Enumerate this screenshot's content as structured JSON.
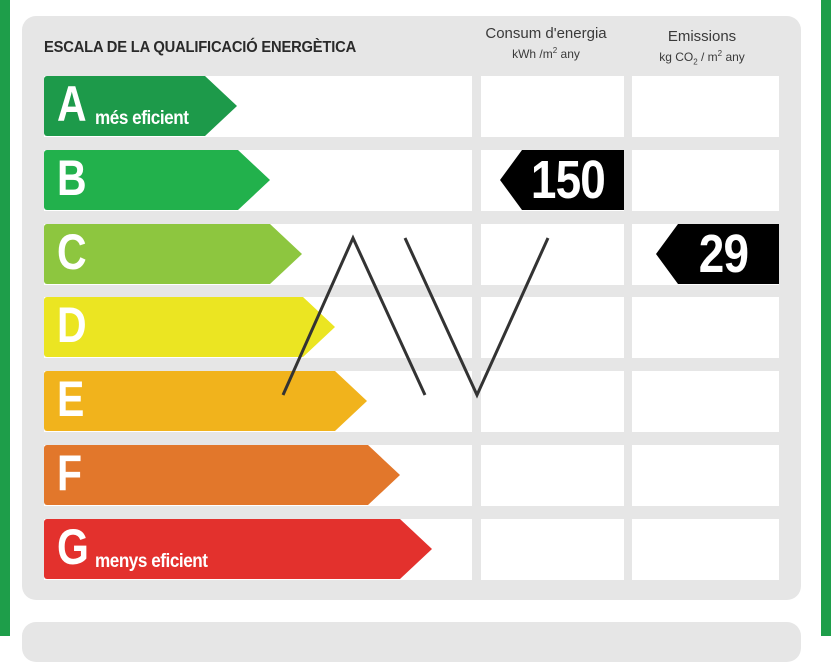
{
  "title": "ESCALA DE LA QUALIFICACIÓ ENERGÈTICA",
  "columns": {
    "consum": {
      "label": "Consum d'energia",
      "unit_pre": "kWh /m",
      "unit_sup": "2",
      "unit_post": " any"
    },
    "emissions": {
      "label": "Emissions",
      "unit_pre": "kg CO",
      "unit_sub": "2",
      "unit_mid": " / m",
      "unit_sup": "2",
      "unit_post": " any"
    }
  },
  "ratings": [
    {
      "letter": "A",
      "sublabel": "més eficient",
      "color": "#1d9a4a"
    },
    {
      "letter": "B",
      "sublabel": "",
      "color": "#22b14c"
    },
    {
      "letter": "C",
      "sublabel": "",
      "color": "#8dc63f"
    },
    {
      "letter": "D",
      "sublabel": "",
      "color": "#ebe522"
    },
    {
      "letter": "E",
      "sublabel": "",
      "color": "#f1b31c"
    },
    {
      "letter": "F",
      "sublabel": "",
      "color": "#e2772b"
    },
    {
      "letter": "G",
      "sublabel": "menys eficient",
      "color": "#e3312d"
    }
  ],
  "consumption": {
    "value": "150",
    "rating": "B"
  },
  "emissions": {
    "value": "29",
    "rating": "C"
  },
  "watermark": "AV"
}
